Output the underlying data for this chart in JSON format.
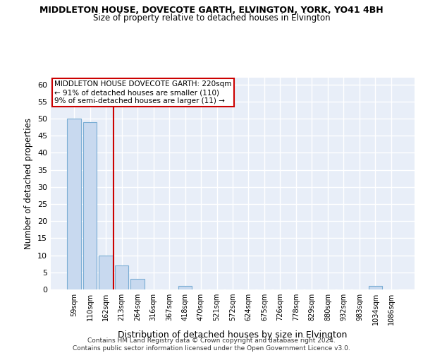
{
  "title": "MIDDLETON HOUSE, DOVECOTE GARTH, ELVINGTON, YORK, YO41 4BH",
  "subtitle": "Size of property relative to detached houses in Elvington",
  "xlabel": "Distribution of detached houses by size in Elvington",
  "ylabel": "Number of detached properties",
  "bin_labels": [
    "59sqm",
    "110sqm",
    "162sqm",
    "213sqm",
    "264sqm",
    "316sqm",
    "367sqm",
    "418sqm",
    "470sqm",
    "521sqm",
    "572sqm",
    "624sqm",
    "675sqm",
    "726sqm",
    "778sqm",
    "829sqm",
    "880sqm",
    "932sqm",
    "983sqm",
    "1034sqm",
    "1086sqm"
  ],
  "bar_values": [
    50,
    49,
    10,
    7,
    3,
    0,
    0,
    1,
    0,
    0,
    0,
    0,
    0,
    0,
    0,
    0,
    0,
    0,
    0,
    1,
    0
  ],
  "bar_color": "#c8d9ef",
  "bar_edgecolor": "#7aadd4",
  "vline_x_idx": 3,
  "vline_color": "#cc0000",
  "ylim": [
    0,
    62
  ],
  "yticks": [
    0,
    5,
    10,
    15,
    20,
    25,
    30,
    35,
    40,
    45,
    50,
    55,
    60
  ],
  "annotation_line1": "MIDDLETON HOUSE DOVECOTE GARTH: 220sqm",
  "annotation_line2": "← 91% of detached houses are smaller (110)",
  "annotation_line3": "9% of semi-detached houses are larger (11) →",
  "annotation_box_edgecolor": "#cc0000",
  "footer_line1": "Contains HM Land Registry data © Crown copyright and database right 2024.",
  "footer_line2": "Contains public sector information licensed under the Open Government Licence v3.0.",
  "bg_color": "#ffffff",
  "plot_bg_color": "#e8eef8",
  "grid_color": "#ffffff"
}
